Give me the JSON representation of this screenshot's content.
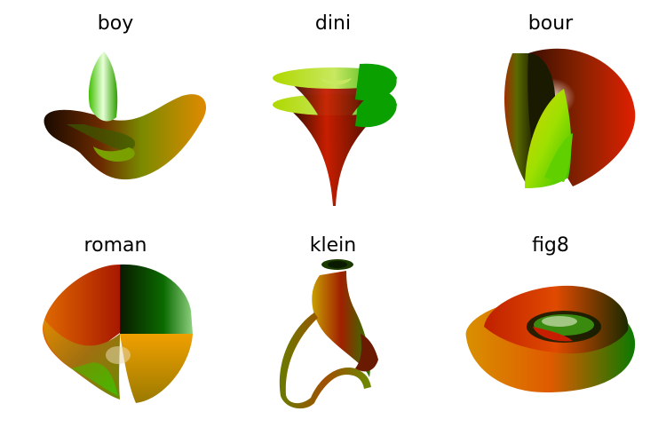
{
  "panels": [
    {
      "title": "boy"
    },
    {
      "title": "dini"
    },
    {
      "title": "bour"
    },
    {
      "title": "roman"
    },
    {
      "title": "klein"
    },
    {
      "title": "fig8"
    }
  ],
  "colors": {
    "background": "#ffffff",
    "title": "#000000",
    "dark": "#1a0a00",
    "green": "#2bbd00",
    "bright_green": "#7be000",
    "dark_green": "#0a5a00",
    "red": "#c81e00",
    "orange": "#e08a00",
    "olive": "#7a7a00",
    "yellow": "#d9d200"
  }
}
